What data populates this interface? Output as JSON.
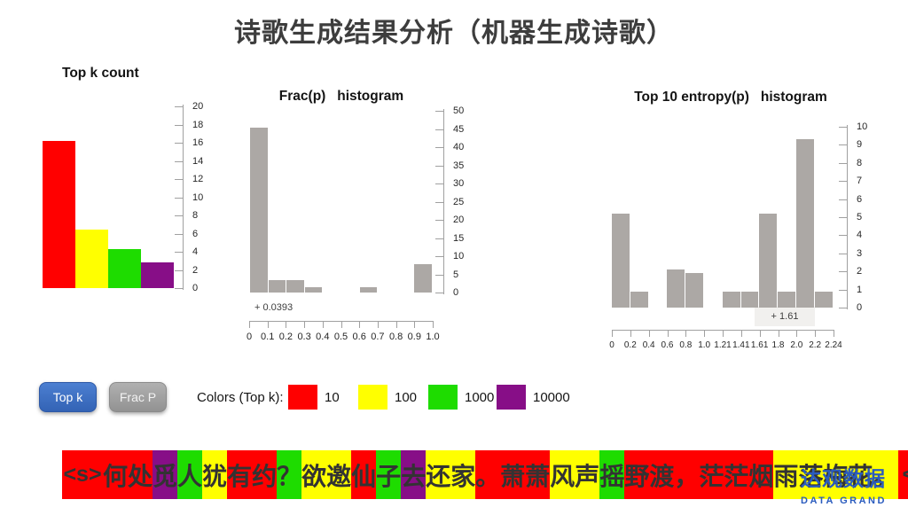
{
  "title": "诗歌生成结果分析（机器生成诗歌）",
  "colors": {
    "red": "#ff0000",
    "yellow": "#ffff00",
    "green": "#1edc00",
    "purple": "#870e87",
    "bar_gray": "#aca8a5"
  },
  "chart_data": [
    {
      "type": "bar",
      "title": "Top k count",
      "categories": [
        "10",
        "100",
        "1000",
        "10000"
      ],
      "values": [
        16.2,
        6.4,
        4.3,
        2.8
      ],
      "bar_colors": [
        "red",
        "yellow",
        "green",
        "purple"
      ],
      "ylim": [
        0,
        20
      ],
      "ystep": 2,
      "grid": false,
      "axis_side": "right"
    },
    {
      "type": "bar",
      "title": "Frac(p)   histogram",
      "bin_edges": [
        0,
        0.1,
        0.2,
        0.3,
        0.4,
        0.5,
        0.6,
        0.7,
        0.8,
        0.9,
        1.0
      ],
      "x_tick_labels": [
        "0",
        "0.1",
        "0.2",
        "0.3",
        "0.4",
        "0.5",
        "0.6",
        "0.7",
        "0.8",
        "0.9",
        "1.0"
      ],
      "values": [
        45.3,
        3.5,
        3.5,
        1.5,
        0,
        0,
        1.5,
        0,
        0,
        7.9
      ],
      "ylim": [
        0,
        50
      ],
      "ystep": 5,
      "annotation": "+ 0.0393",
      "bar_color": "bar_gray",
      "grid": false,
      "axis_side": "right"
    },
    {
      "type": "bar",
      "title": "Top 10 entropy(p)   histogram",
      "bin_edges": [
        0,
        0.2,
        0.4,
        0.6,
        0.8,
        1.0,
        1.21,
        1.41,
        1.61,
        1.8,
        2.0,
        2.2,
        2.24
      ],
      "x_tick_labels": [
        "0",
        "0.2",
        "0.4",
        "0.6",
        "0.8",
        "1.0",
        "1.21",
        "1.41",
        "1.61",
        "1.8",
        "2.0",
        "2.2",
        "2.24"
      ],
      "values": [
        5.2,
        0.9,
        0,
        2.1,
        1.9,
        0,
        0.9,
        0.9,
        5.2,
        0.9,
        9.3,
        0.9
      ],
      "ylim": [
        0,
        10
      ],
      "ystep": 1,
      "annotation": "+ 1.61",
      "bar_color": "bar_gray",
      "grid": false,
      "axis_side": "right"
    }
  ],
  "buttons": [
    {
      "label": "Top k",
      "style": "blue"
    },
    {
      "label": "Frac P",
      "style": "gray"
    }
  ],
  "legend": {
    "label": "Colors (Top k):",
    "items": [
      {
        "label": "10",
        "color": "red"
      },
      {
        "label": "100",
        "color": "yellow"
      },
      {
        "label": "1000",
        "color": "green"
      },
      {
        "label": "10000",
        "color": "purple"
      }
    ]
  },
  "token_strip": {
    "tokens": [
      {
        "text": "<s>",
        "color": "red"
      },
      {
        "text": "何",
        "color": "red"
      },
      {
        "text": "处",
        "color": "red"
      },
      {
        "text": "觅",
        "color": "purple"
      },
      {
        "text": "人",
        "color": "green"
      },
      {
        "text": "犹",
        "color": "yellow"
      },
      {
        "text": "有",
        "color": "red"
      },
      {
        "text": "约",
        "color": "red"
      },
      {
        "text": "？",
        "color": "green"
      },
      {
        "text": "欲",
        "color": "yellow"
      },
      {
        "text": "邀",
        "color": "yellow"
      },
      {
        "text": "仙",
        "color": "red"
      },
      {
        "text": "子",
        "color": "green"
      },
      {
        "text": "去",
        "color": "purple"
      },
      {
        "text": "还",
        "color": "yellow"
      },
      {
        "text": "家",
        "color": "yellow"
      },
      {
        "text": "。",
        "color": "red"
      },
      {
        "text": "萧",
        "color": "red"
      },
      {
        "text": "萧",
        "color": "red"
      },
      {
        "text": "风",
        "color": "yellow"
      },
      {
        "text": "声",
        "color": "yellow"
      },
      {
        "text": "摇",
        "color": "green"
      },
      {
        "text": "野",
        "color": "red"
      },
      {
        "text": "渡",
        "color": "red"
      },
      {
        "text": "，",
        "color": "red"
      },
      {
        "text": "茫",
        "color": "red"
      },
      {
        "text": "茫",
        "color": "red"
      },
      {
        "text": "烟",
        "color": "red"
      },
      {
        "text": "雨",
        "color": "yellow"
      },
      {
        "text": "落",
        "color": "yellow"
      },
      {
        "text": "梅",
        "color": "yellow"
      },
      {
        "text": "花",
        "color": "yellow"
      },
      {
        "text": "。",
        "color": "yellow"
      },
      {
        "text": "<s/>",
        "color": "red"
      }
    ]
  },
  "logo": {
    "name_cn": "达观数据",
    "name_en": "DATA GRAND"
  }
}
